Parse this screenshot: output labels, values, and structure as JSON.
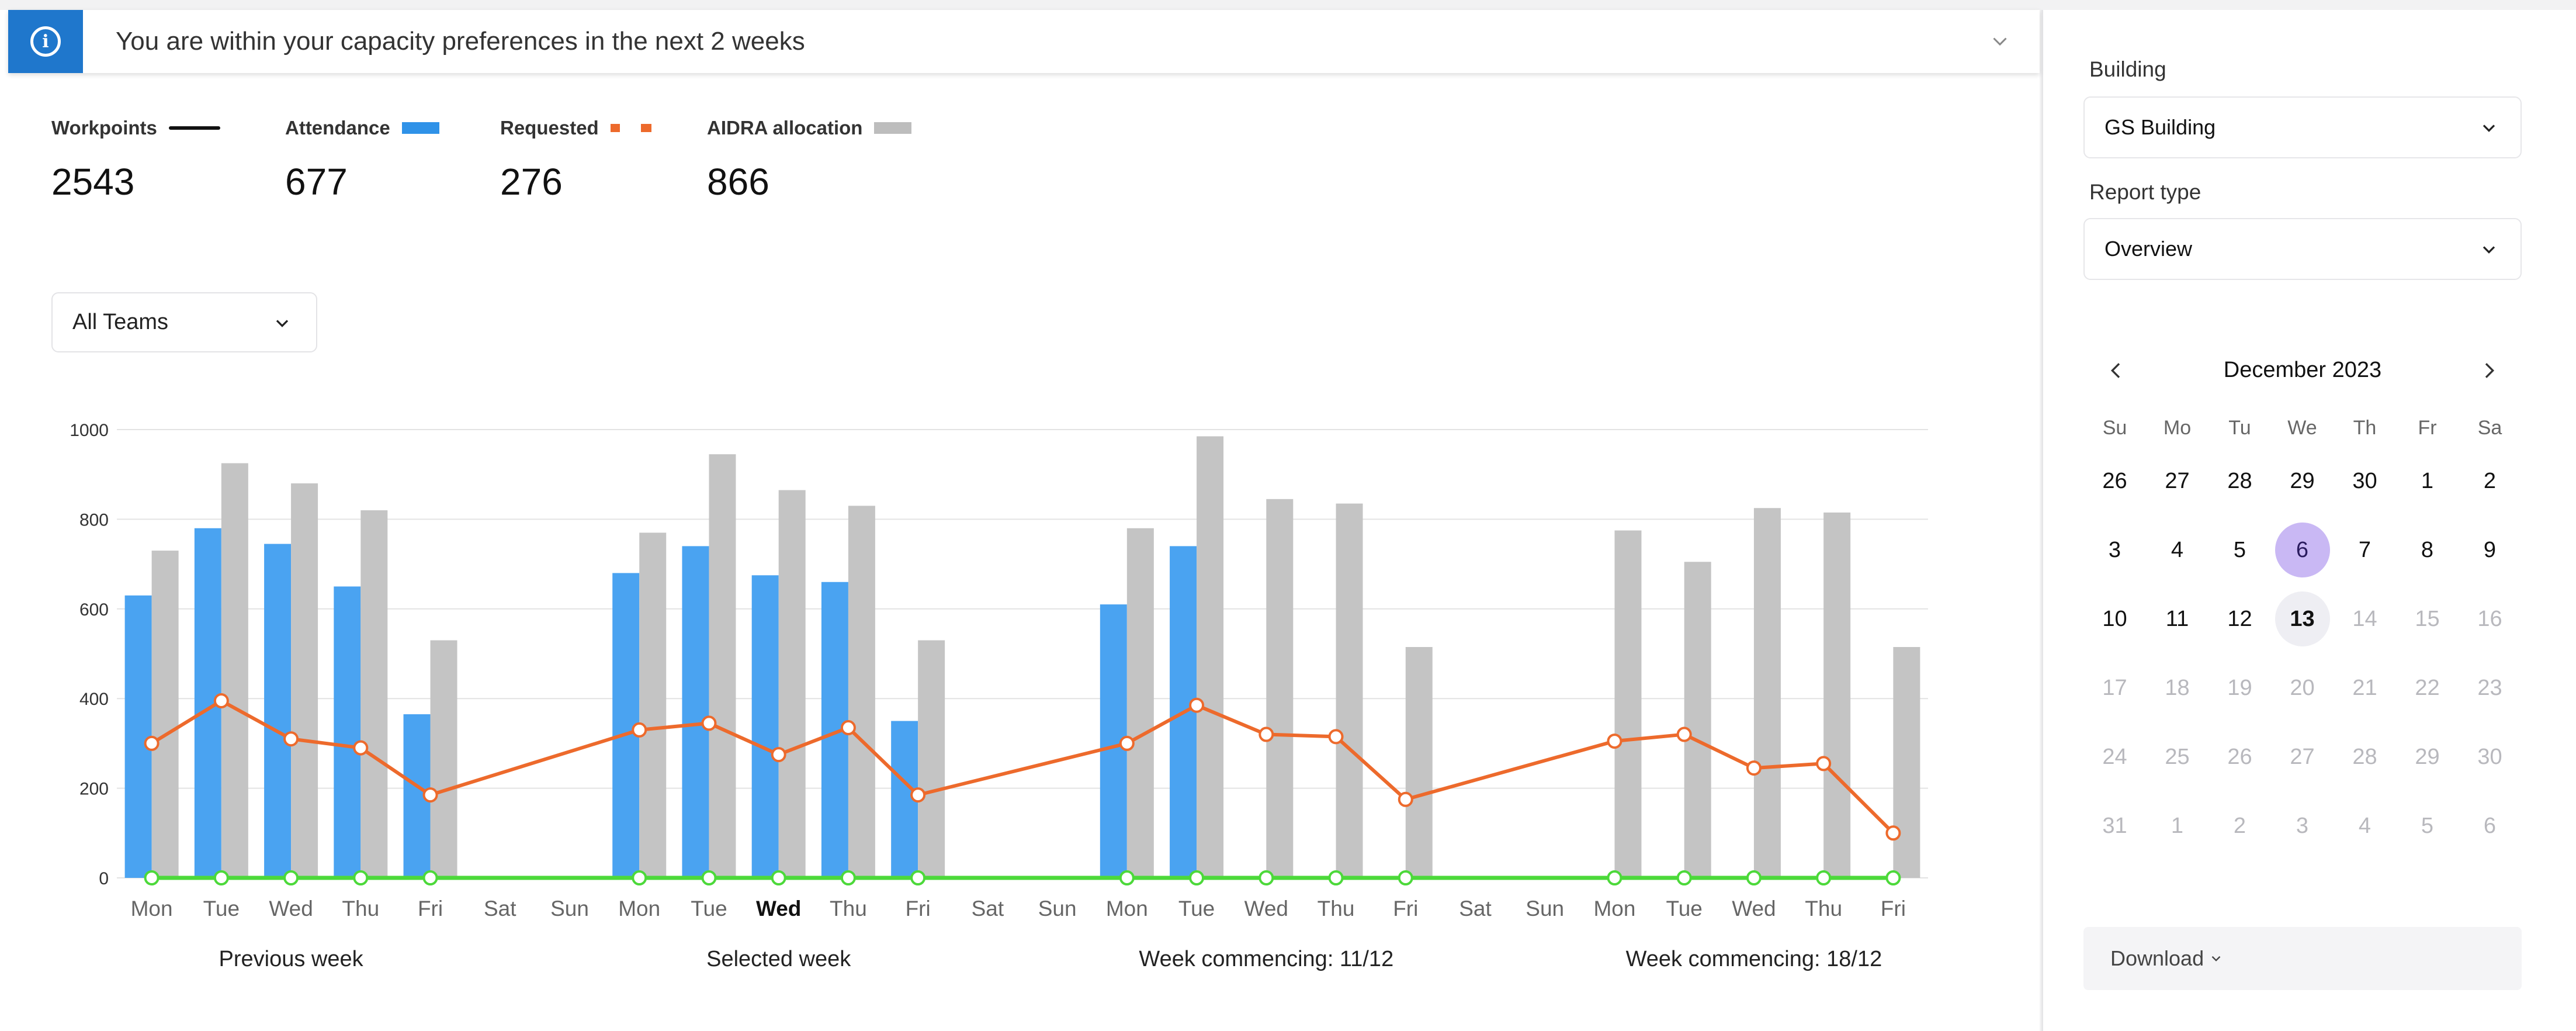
{
  "banner": {
    "message": "You are within your capacity preferences in the next 2 weeks",
    "icon": "info-icon",
    "expand_icon": "chevron-down-icon"
  },
  "metrics": [
    {
      "label": "Workpoints",
      "value": "2543",
      "color": "#111111"
    },
    {
      "label": "Attendance",
      "value": "677",
      "color": "#2f92e8"
    },
    {
      "label": "Requested",
      "value": "276",
      "color": "#ed6a2c"
    },
    {
      "label": "AIDRA allocation",
      "value": "866",
      "color": "#bdbdbd"
    }
  ],
  "teams_filter": {
    "value": "All Teams"
  },
  "sidebar": {
    "building_label": "Building",
    "building_value": "GS Building",
    "report_label": "Report type",
    "report_value": "Overview",
    "download_label": "Download"
  },
  "calendar": {
    "title": "December 2023",
    "weekdays": [
      "Su",
      "Mo",
      "Tu",
      "We",
      "Th",
      "Fr",
      "Sa"
    ],
    "weeks": [
      [
        {
          "d": "26"
        },
        {
          "d": "27"
        },
        {
          "d": "28"
        },
        {
          "d": "29"
        },
        {
          "d": "30"
        },
        {
          "d": "1"
        },
        {
          "d": "2"
        }
      ],
      [
        {
          "d": "3"
        },
        {
          "d": "4"
        },
        {
          "d": "5"
        },
        {
          "d": "6",
          "state": "selected"
        },
        {
          "d": "7"
        },
        {
          "d": "8"
        },
        {
          "d": "9"
        }
      ],
      [
        {
          "d": "10"
        },
        {
          "d": "11"
        },
        {
          "d": "12"
        },
        {
          "d": "13",
          "state": "today"
        },
        {
          "d": "14",
          "state": "muted"
        },
        {
          "d": "15",
          "state": "muted"
        },
        {
          "d": "16",
          "state": "muted"
        }
      ],
      [
        {
          "d": "17",
          "state": "muted"
        },
        {
          "d": "18",
          "state": "muted"
        },
        {
          "d": "19",
          "state": "muted"
        },
        {
          "d": "20",
          "state": "muted"
        },
        {
          "d": "21",
          "state": "muted"
        },
        {
          "d": "22",
          "state": "muted"
        },
        {
          "d": "23",
          "state": "muted"
        }
      ],
      [
        {
          "d": "24",
          "state": "muted"
        },
        {
          "d": "25",
          "state": "muted"
        },
        {
          "d": "26",
          "state": "muted"
        },
        {
          "d": "27",
          "state": "muted"
        },
        {
          "d": "28",
          "state": "muted"
        },
        {
          "d": "29",
          "state": "muted"
        },
        {
          "d": "30",
          "state": "muted"
        }
      ],
      [
        {
          "d": "31",
          "state": "muted"
        },
        {
          "d": "1",
          "state": "muted"
        },
        {
          "d": "2",
          "state": "muted"
        },
        {
          "d": "3",
          "state": "muted"
        },
        {
          "d": "4",
          "state": "muted"
        },
        {
          "d": "5",
          "state": "muted"
        },
        {
          "d": "6",
          "state": "muted"
        }
      ]
    ]
  },
  "chart_data": {
    "type": "bar",
    "ylim": [
      0,
      1000
    ],
    "yticks": [
      0,
      200,
      400,
      600,
      800,
      1000
    ],
    "grid": true,
    "categories": [
      "Mon",
      "Tue",
      "Wed",
      "Thu",
      "Fri",
      "Sat",
      "Sun",
      "Mon",
      "Tue",
      "Wed",
      "Thu",
      "Fri",
      "Sat",
      "Sun",
      "Mon",
      "Tue",
      "Wed",
      "Thu",
      "Fri",
      "Sat",
      "Sun",
      "Mon",
      "Tue",
      "Wed",
      "Thu",
      "Fri"
    ],
    "highlight_category_index": 9,
    "week_labels": [
      "Previous week",
      "Selected week",
      "Week commencing: 11/12",
      "Week commencing: 18/12"
    ],
    "series": [
      {
        "name": "Attendance",
        "kind": "bar",
        "color": "#4aa3f1",
        "values": [
          630,
          780,
          745,
          650,
          365,
          null,
          null,
          680,
          740,
          675,
          660,
          350,
          null,
          null,
          610,
          740,
          null,
          null,
          null,
          null,
          null,
          null,
          null,
          null,
          null,
          null
        ]
      },
      {
        "name": "AIDRA allocation",
        "kind": "bar",
        "color": "#c4c4c4",
        "values": [
          730,
          925,
          880,
          820,
          530,
          null,
          null,
          770,
          945,
          865,
          830,
          530,
          null,
          null,
          780,
          985,
          845,
          835,
          515,
          null,
          null,
          775,
          705,
          825,
          815,
          515
        ]
      },
      {
        "name": "Requested",
        "kind": "line",
        "color": "#ed6a2c",
        "values": [
          300,
          395,
          310,
          290,
          185,
          null,
          null,
          330,
          345,
          275,
          335,
          185,
          null,
          null,
          300,
          385,
          320,
          315,
          175,
          null,
          null,
          305,
          320,
          245,
          255,
          100
        ]
      },
      {
        "name": "Workpoints",
        "kind": "line",
        "color": "#4cd93a",
        "values": [
          0,
          0,
          0,
          0,
          0,
          null,
          null,
          0,
          0,
          0,
          0,
          0,
          null,
          null,
          0,
          0,
          0,
          0,
          0,
          null,
          null,
          0,
          0,
          0,
          0,
          0
        ]
      }
    ]
  }
}
